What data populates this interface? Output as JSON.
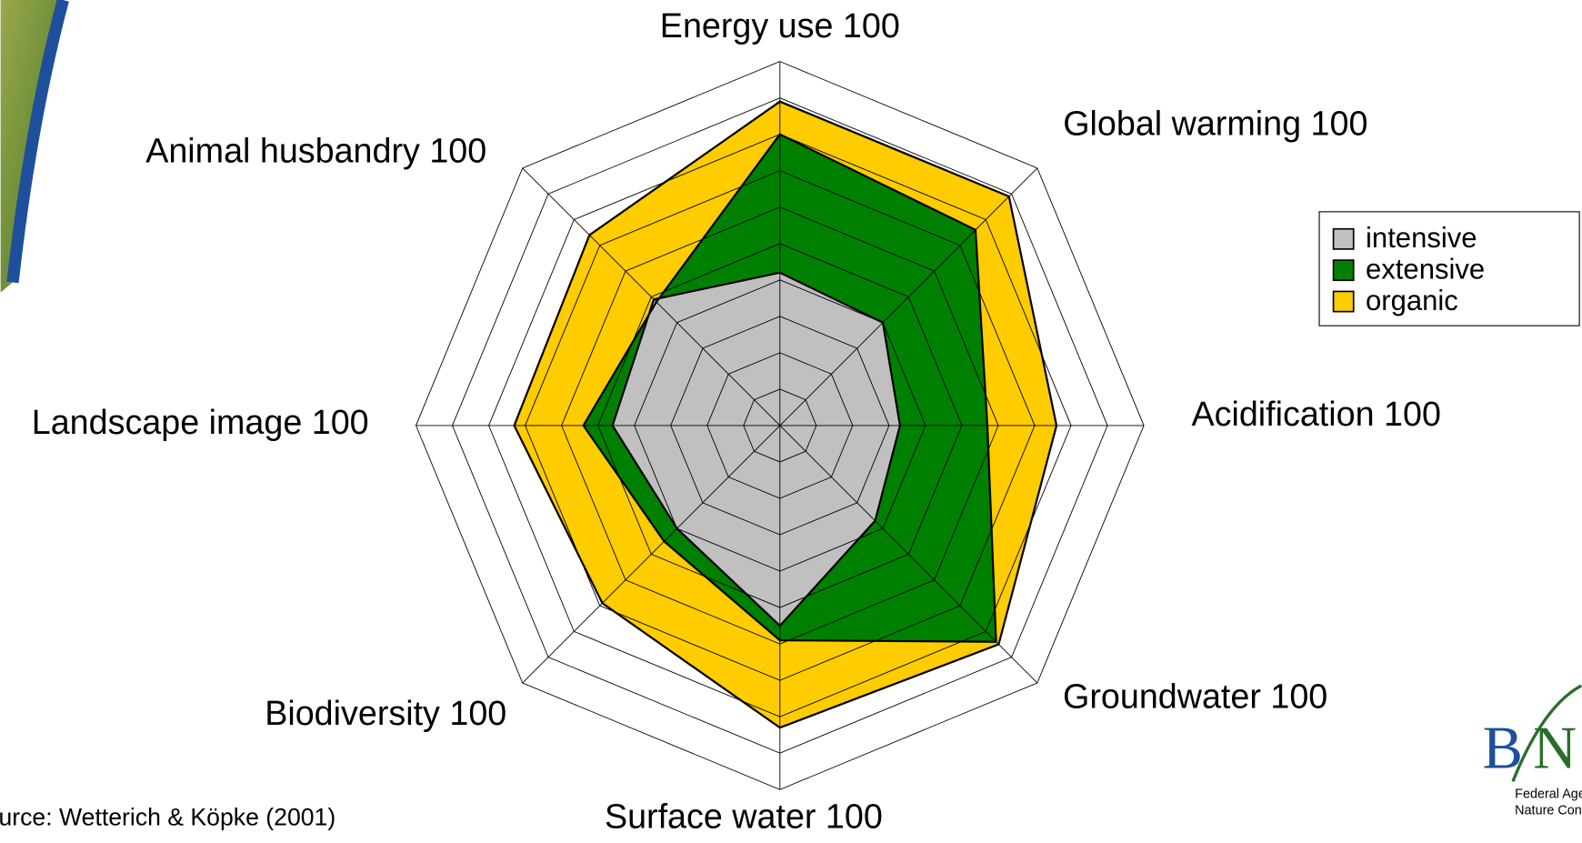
{
  "chart_data": {
    "type": "radar",
    "categories": [
      "Energy use 100",
      "Global warming 100",
      "Acidification 100",
      "Groundwater 100",
      "Surface water 100",
      "Biodiversity 100",
      "Landscape image 100",
      "Animal husbandry 100"
    ],
    "ylim": [
      0,
      100
    ],
    "yticks": [
      0,
      10,
      20,
      30,
      40,
      50,
      60,
      70,
      80,
      90,
      100
    ],
    "grid": true,
    "series": [
      {
        "name": "intensive",
        "color": "#c0c0c0",
        "values": [
          42,
          40,
          33,
          37,
          55,
          40,
          46,
          49
        ]
      },
      {
        "name": "extensive",
        "color": "#008000",
        "values": [
          80,
          76,
          57,
          84,
          59,
          45,
          54,
          48
        ]
      },
      {
        "name": "organic",
        "color": "#ffcc00",
        "values": [
          89,
          89,
          76,
          85,
          83,
          69,
          73,
          74
        ]
      }
    ],
    "source": "urce: Wetterich & Köpke (2001)",
    "logo": {
      "letters": [
        "B",
        "N"
      ],
      "lines": [
        "Federal Agency",
        "Nature Conserv"
      ]
    }
  }
}
